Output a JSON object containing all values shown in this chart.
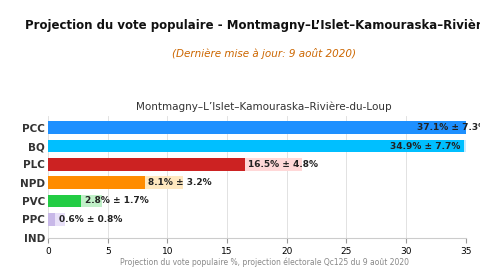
{
  "title": "Projection du vote populaire - Montmagny–L’Islet–Kamouraska–Rivière-d",
  "subtitle": "(Dernière mise à jour: 9 août 2020)",
  "region_label": "Montmagny–L’Islet–Kamouraska–Rivière-du-Loup",
  "xlabel": "Projection du vote populaire %, projection électorale Qc125 du 9 août 2020",
  "parties": [
    "PCC",
    "BQ",
    "PLC",
    "NPD",
    "PVC",
    "PPC",
    "IND"
  ],
  "values": [
    37.1,
    34.9,
    16.5,
    8.1,
    2.8,
    0.6,
    0.0
  ],
  "errors": [
    7.3,
    7.7,
    4.8,
    3.2,
    1.7,
    0.8,
    0.0
  ],
  "bar_colors": [
    "#1e90ff",
    "#00bfff",
    "#cc2222",
    "#ff8c00",
    "#22cc44",
    "#c8b8e8",
    "#cccccc"
  ],
  "error_colors": [
    "#b0d8f8",
    "#c8ecff",
    "#ffd8d8",
    "#ffe8c0",
    "#c0f0c8",
    "#e8e0f8",
    "#eeeeee"
  ],
  "xlim": [
    0,
    35
  ],
  "xticks": [
    0,
    5,
    10,
    15,
    20,
    25,
    30,
    35
  ],
  "background_color": "#ffffff",
  "bar_height": 0.7,
  "label_inside_threshold": 20
}
